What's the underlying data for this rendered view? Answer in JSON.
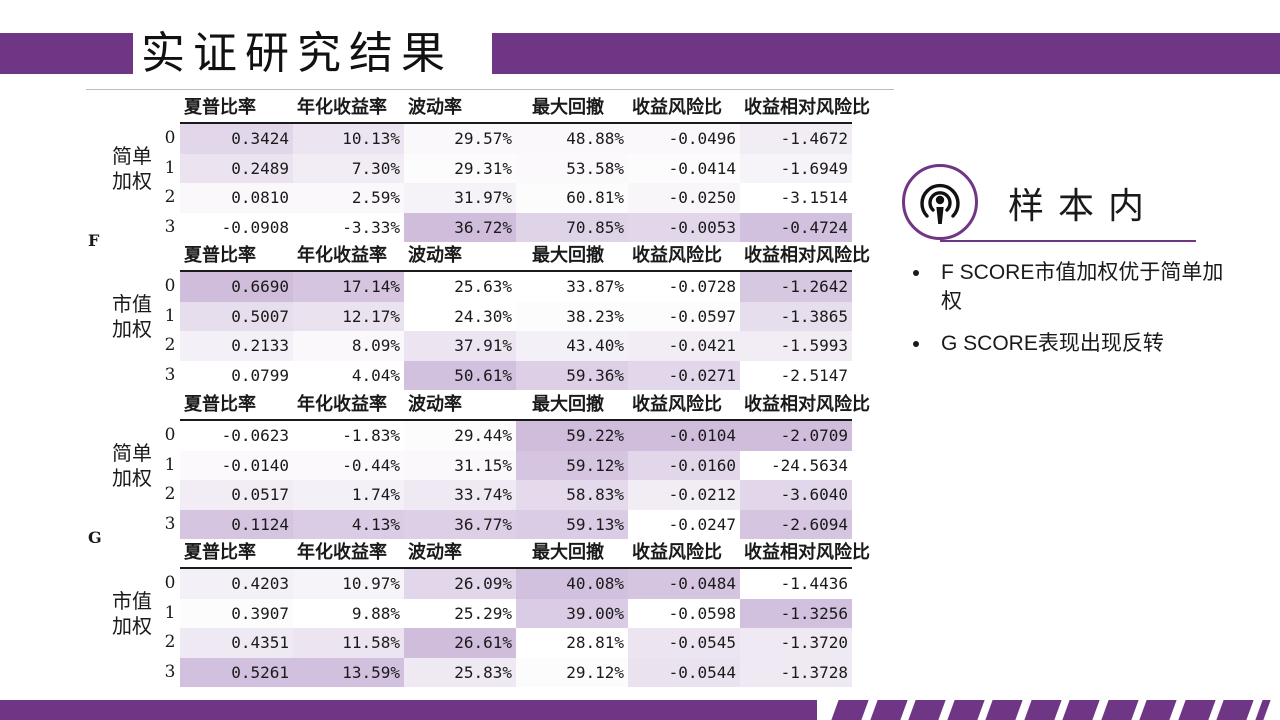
{
  "header": {
    "title": "实证研究结果"
  },
  "colors": {
    "accent": "#6f3685",
    "heat_rgb": [
      164,
      129,
      188
    ],
    "heat_max_alpha": 0.58
  },
  "columns": [
    "夏普比率",
    "年化收益率",
    "波动率",
    "最大回撤",
    "收益风险比",
    "收益相对风险比"
  ],
  "groups": [
    {
      "label": "F",
      "tables": [
        {
          "method": "简单加权",
          "rows": [
            {
              "idx": "0",
              "values": [
                "0.3424",
                "10.13%",
                "29.57%",
                "48.88%",
                "-0.0496",
                "-1.4672"
              ],
              "shade": [
                0.55,
                0.35,
                0.1,
                0.1,
                0.1,
                0.25
              ]
            },
            {
              "idx": "1",
              "values": [
                "0.2489",
                "7.30%",
                "29.31%",
                "53.58%",
                "-0.0414",
                "-1.6949"
              ],
              "shade": [
                0.38,
                0.25,
                0.05,
                0.08,
                0.05,
                0.15
              ]
            },
            {
              "idx": "2",
              "values": [
                "0.0810",
                "2.59%",
                "31.97%",
                "60.81%",
                "-0.0250",
                "-3.1514"
              ],
              "shade": [
                0.1,
                0.1,
                0.18,
                0.05,
                0.12,
                0.0
              ]
            },
            {
              "idx": "3",
              "values": [
                "-0.0908",
                "-3.33%",
                "36.72%",
                "70.85%",
                "-0.0053",
                "-0.4724"
              ],
              "shade": [
                0.0,
                0.0,
                0.9,
                0.6,
                0.55,
                0.85
              ]
            }
          ]
        },
        {
          "method": "市值加权",
          "rows": [
            {
              "idx": "0",
              "values": [
                "0.6690",
                "17.14%",
                "25.63%",
                "33.87%",
                "-0.0728",
                "-1.2642"
              ],
              "shade": [
                0.9,
                0.8,
                0.0,
                0.0,
                0.0,
                0.75
              ]
            },
            {
              "idx": "1",
              "values": [
                "0.5007",
                "12.17%",
                "24.30%",
                "38.23%",
                "-0.0597",
                "-1.3865"
              ],
              "shade": [
                0.45,
                0.4,
                0.0,
                0.05,
                0.05,
                0.45
              ]
            },
            {
              "idx": "2",
              "values": [
                "0.2133",
                "8.09%",
                "37.91%",
                "43.40%",
                "-0.0421",
                "-1.5993"
              ],
              "shade": [
                0.2,
                0.1,
                0.35,
                0.2,
                0.25,
                0.25
              ]
            },
            {
              "idx": "3",
              "values": [
                "0.0799",
                "4.04%",
                "50.61%",
                "59.36%",
                "-0.0271",
                "-2.5147"
              ],
              "shade": [
                0.0,
                0.0,
                0.85,
                0.65,
                0.55,
                0.0
              ]
            }
          ]
        }
      ]
    },
    {
      "label": "G",
      "tables": [
        {
          "method": "简单加权",
          "rows": [
            {
              "idx": "0",
              "values": [
                "-0.0623",
                "-1.83%",
                "29.44%",
                "59.22%",
                "-0.0104",
                "-2.0709"
              ],
              "shade": [
                0.0,
                0.0,
                0.05,
                0.9,
                0.9,
                0.9
              ]
            },
            {
              "idx": "1",
              "values": [
                "-0.0140",
                "-0.44%",
                "31.15%",
                "59.12%",
                "-0.0160",
                "-24.5634"
              ],
              "shade": [
                0.08,
                0.08,
                0.1,
                0.8,
                0.55,
                0.0
              ]
            },
            {
              "idx": "2",
              "values": [
                "0.0517",
                "1.74%",
                "33.74%",
                "58.83%",
                "-0.0212",
                "-3.6040"
              ],
              "shade": [
                0.25,
                0.2,
                0.3,
                0.5,
                0.25,
                0.55
              ]
            },
            {
              "idx": "3",
              "values": [
                "0.1124",
                "4.13%",
                "36.77%",
                "59.13%",
                "-0.0247",
                "-2.6094"
              ],
              "shade": [
                0.8,
                0.7,
                0.65,
                0.7,
                0.0,
                0.8
              ]
            }
          ]
        },
        {
          "method": "市值加权",
          "rows": [
            {
              "idx": "0",
              "values": [
                "0.4203",
                "10.97%",
                "26.09%",
                "40.08%",
                "-0.0484",
                "-1.4436"
              ],
              "shade": [
                0.2,
                0.15,
                0.55,
                0.85,
                0.8,
                0.0
              ]
            },
            {
              "idx": "1",
              "values": [
                "0.3907",
                "9.88%",
                "25.29%",
                "39.00%",
                "-0.0598",
                "-1.3256"
              ],
              "shade": [
                0.05,
                0.0,
                0.0,
                0.7,
                0.0,
                0.85
              ]
            },
            {
              "idx": "2",
              "values": [
                "0.4351",
                "11.58%",
                "26.61%",
                "28.81%",
                "-0.0545",
                "-1.3720"
              ],
              "shade": [
                0.3,
                0.35,
                0.9,
                0.0,
                0.35,
                0.3
              ]
            },
            {
              "idx": "3",
              "values": [
                "0.5261",
                "13.59%",
                "25.83%",
                "29.12%",
                "-0.0544",
                "-1.3728"
              ],
              "shade": [
                0.85,
                0.85,
                0.3,
                0.05,
                0.4,
                0.3
              ]
            }
          ]
        }
      ]
    }
  ],
  "sidebar": {
    "icon": "podcast-icon",
    "title": "样本内",
    "bullets": [
      "F SCORE市值加权优于简单加权",
      "G SCORE表现出现反转"
    ]
  }
}
